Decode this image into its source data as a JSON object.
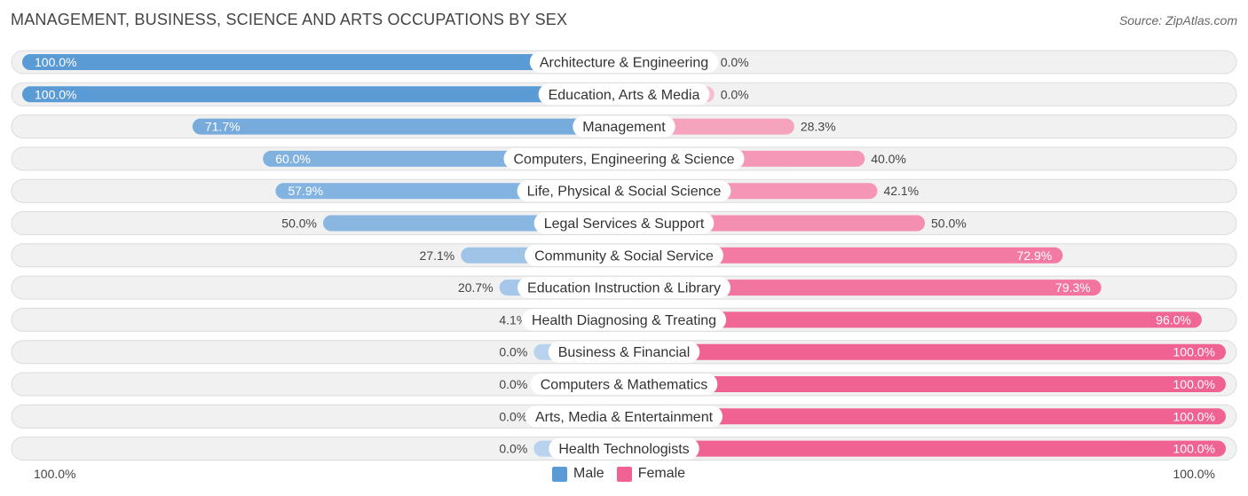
{
  "title": "MANAGEMENT, BUSINESS, SCIENCE AND ARTS OCCUPATIONS BY SEX",
  "source": "Source: ZipAtlas.com",
  "axis": {
    "left_label": "100.0%",
    "right_label": "100.0%"
  },
  "legend": [
    {
      "label": "Male",
      "color": "#5b9bd5"
    },
    {
      "label": "Female",
      "color": "#f06292"
    }
  ],
  "chart_data": {
    "type": "bar",
    "orientation": "horizontal-diverging",
    "categories": [
      "Architecture & Engineering",
      "Education, Arts & Media",
      "Management",
      "Computers, Engineering & Science",
      "Life, Physical & Social Science",
      "Legal Services & Support",
      "Community & Social Service",
      "Education Instruction & Library",
      "Health Diagnosing & Treating",
      "Business & Financial",
      "Computers & Mathematics",
      "Arts, Media & Entertainment",
      "Health Technologists"
    ],
    "series": [
      {
        "name": "Male",
        "values": [
          100.0,
          100.0,
          71.7,
          60.0,
          57.9,
          50.0,
          27.1,
          20.7,
          4.1,
          0.0,
          0.0,
          0.0,
          0.0
        ],
        "labels": [
          "100.0%",
          "100.0%",
          "71.7%",
          "60.0%",
          "57.9%",
          "50.0%",
          "27.1%",
          "20.7%",
          "4.1%",
          "0.0%",
          "0.0%",
          "0.0%",
          "0.0%"
        ]
      },
      {
        "name": "Female",
        "values": [
          0.0,
          0.0,
          28.3,
          40.0,
          42.1,
          50.0,
          72.9,
          79.3,
          96.0,
          100.0,
          100.0,
          100.0,
          100.0
        ],
        "labels": [
          "0.0%",
          "0.0%",
          "28.3%",
          "40.0%",
          "42.1%",
          "50.0%",
          "72.9%",
          "79.3%",
          "96.0%",
          "100.0%",
          "100.0%",
          "100.0%",
          "100.0%"
        ]
      }
    ],
    "xlim": [
      0,
      100
    ],
    "unit": "%"
  }
}
